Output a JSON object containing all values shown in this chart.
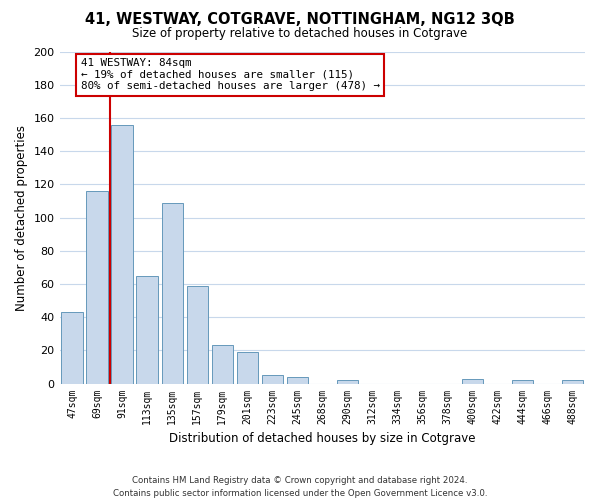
{
  "title": "41, WESTWAY, COTGRAVE, NOTTINGHAM, NG12 3QB",
  "subtitle": "Size of property relative to detached houses in Cotgrave",
  "xlabel": "Distribution of detached houses by size in Cotgrave",
  "ylabel": "Number of detached properties",
  "bar_labels": [
    "47sqm",
    "69sqm",
    "91sqm",
    "113sqm",
    "135sqm",
    "157sqm",
    "179sqm",
    "201sqm",
    "223sqm",
    "245sqm",
    "268sqm",
    "290sqm",
    "312sqm",
    "334sqm",
    "356sqm",
    "378sqm",
    "400sqm",
    "422sqm",
    "444sqm",
    "466sqm",
    "488sqm"
  ],
  "bar_heights": [
    43,
    116,
    156,
    65,
    109,
    59,
    23,
    19,
    5,
    4,
    0,
    2,
    0,
    0,
    0,
    0,
    3,
    0,
    2,
    0,
    2
  ],
  "bar_color": "#c8d8eb",
  "bar_edge_color": "#6699bb",
  "vline_color": "#cc0000",
  "annotation_text": "41 WESTWAY: 84sqm\n← 19% of detached houses are smaller (115)\n80% of semi-detached houses are larger (478) →",
  "annotation_box_color": "#ffffff",
  "annotation_box_edge": "#cc0000",
  "ylim": [
    0,
    200
  ],
  "yticks": [
    0,
    20,
    40,
    60,
    80,
    100,
    120,
    140,
    160,
    180,
    200
  ],
  "footnote": "Contains HM Land Registry data © Crown copyright and database right 2024.\nContains public sector information licensed under the Open Government Licence v3.0.",
  "bg_color": "#ffffff",
  "grid_color": "#c8d8eb"
}
